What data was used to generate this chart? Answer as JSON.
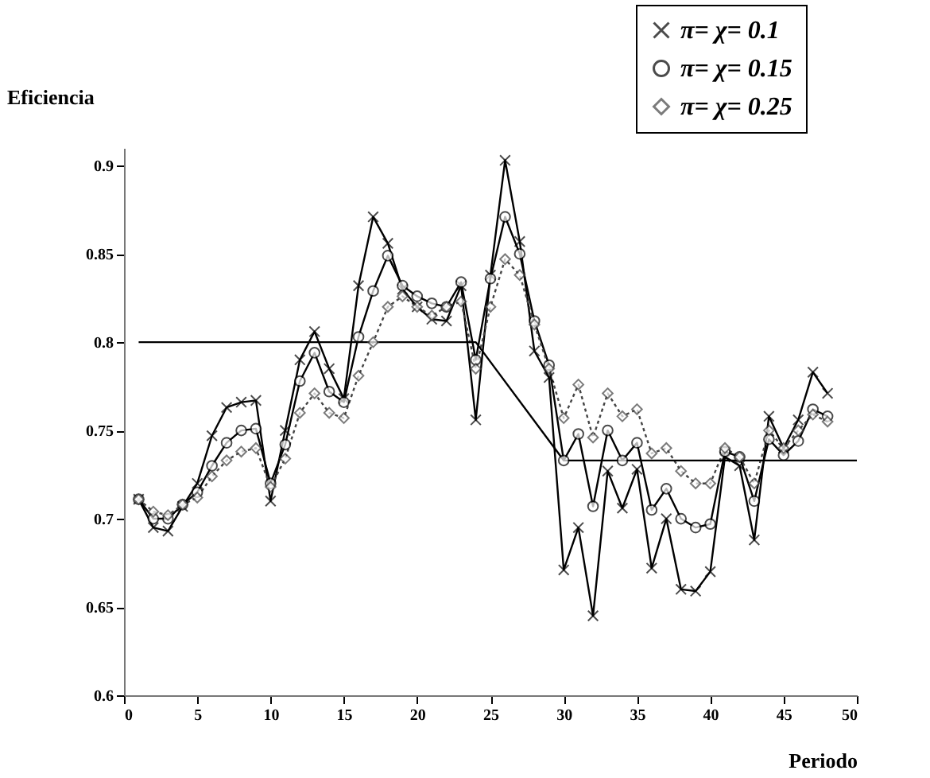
{
  "chart_data": {
    "type": "line",
    "xlabel": "Periodo",
    "ylabel": "Eficiencia",
    "x": [
      1,
      2,
      3,
      4,
      5,
      6,
      7,
      8,
      9,
      10,
      11,
      12,
      13,
      14,
      15,
      16,
      17,
      18,
      19,
      20,
      21,
      22,
      23,
      24,
      25,
      26,
      27,
      28,
      29,
      30,
      31,
      32,
      33,
      34,
      35,
      36,
      37,
      38,
      39,
      40,
      41,
      42,
      43,
      44,
      45,
      46,
      47,
      48
    ],
    "series": [
      {
        "name": "π= χ= 0.1",
        "color": "#000000",
        "marker": "cross",
        "line_style": "solid",
        "values": [
          0.711,
          0.695,
          0.693,
          0.707,
          0.72,
          0.747,
          0.763,
          0.766,
          0.767,
          0.71,
          0.75,
          0.79,
          0.806,
          0.785,
          0.768,
          0.832,
          0.871,
          0.856,
          0.83,
          0.82,
          0.813,
          0.812,
          0.832,
          0.756,
          0.838,
          0.903,
          0.857,
          0.795,
          0.78,
          0.671,
          0.695,
          0.645,
          0.727,
          0.706,
          0.728,
          0.672,
          0.7,
          0.66,
          0.659,
          0.67,
          0.735,
          0.73,
          0.688,
          0.758,
          0.74,
          0.756,
          0.783,
          0.771
        ]
      },
      {
        "name": "π= χ= 0.15",
        "color": "#000000",
        "marker": "circle",
        "line_style": "solid",
        "values": [
          0.711,
          0.7,
          0.7,
          0.708,
          0.715,
          0.73,
          0.743,
          0.75,
          0.751,
          0.72,
          0.742,
          0.778,
          0.794,
          0.772,
          0.766,
          0.803,
          0.829,
          0.849,
          0.832,
          0.826,
          0.822,
          0.82,
          0.834,
          0.79,
          0.836,
          0.871,
          0.85,
          0.812,
          0.787,
          0.733,
          0.748,
          0.707,
          0.75,
          0.733,
          0.743,
          0.705,
          0.717,
          0.7,
          0.695,
          0.697,
          0.738,
          0.735,
          0.71,
          0.745,
          0.736,
          0.744,
          0.762,
          0.758
        ]
      },
      {
        "name": "π= χ= 0.25",
        "color": "#444444",
        "marker": "diamond",
        "line_style": "dotted",
        "values": [
          0.711,
          0.704,
          0.702,
          0.708,
          0.712,
          0.724,
          0.733,
          0.738,
          0.74,
          0.718,
          0.734,
          0.76,
          0.771,
          0.76,
          0.757,
          0.781,
          0.8,
          0.82,
          0.826,
          0.82,
          0.815,
          0.82,
          0.823,
          0.785,
          0.82,
          0.847,
          0.838,
          0.81,
          0.785,
          0.757,
          0.776,
          0.746,
          0.771,
          0.758,
          0.762,
          0.737,
          0.74,
          0.727,
          0.72,
          0.72,
          0.74,
          0.735,
          0.72,
          0.75,
          0.74,
          0.75,
          0.759,
          0.755
        ]
      },
      {
        "type": "line",
        "color": "#000000",
        "marker": "none",
        "line_style": "solid",
        "x": [
          1,
          24,
          30,
          50
        ],
        "values": [
          0.8,
          0.8,
          0.733,
          0.733
        ]
      }
    ],
    "xlim": [
      0,
      50
    ],
    "xticks": [
      0,
      5,
      10,
      15,
      20,
      25,
      30,
      35,
      40,
      45,
      50
    ],
    "ylim": [
      0.6,
      0.91
    ],
    "yticks": [
      0.6,
      0.65,
      0.7,
      0.75,
      0.8,
      0.85,
      0.9
    ],
    "grid": false,
    "legend": "top right"
  }
}
